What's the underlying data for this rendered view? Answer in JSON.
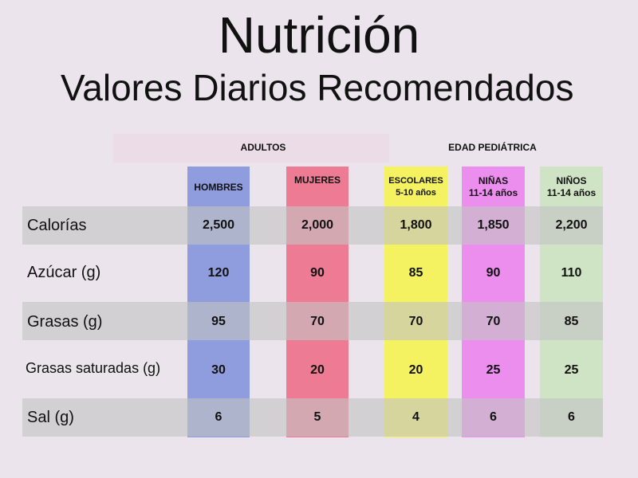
{
  "title": "Nutrición",
  "subtitle": "Valores Diarios Recomendados",
  "groups": {
    "adults": "ADULTOS",
    "pediatric": "EDAD PEDIÁTRICA"
  },
  "columns": [
    {
      "line1": "HOMBRES",
      "line2": "",
      "color": "#7f8fdc"
    },
    {
      "line1": "MUJERES",
      "line2": "",
      "color": "#ec6f8a"
    },
    {
      "line1": "ESCOLARES",
      "line2": "5-10 años",
      "color": "#f4f25a"
    },
    {
      "line1": "NIÑAS",
      "line2": "11-14 años",
      "color": "#ec84ee"
    },
    {
      "line1": "NIÑOS",
      "line2": "11-14 años",
      "color": "#cde3c3"
    }
  ],
  "rows": [
    {
      "label": "Calorías",
      "values": [
        "2,500",
        "2,000",
        "1,800",
        "1,850",
        "2,200"
      ]
    },
    {
      "label": "Azúcar (g)",
      "values": [
        "120",
        "90",
        "85",
        "90",
        "110"
      ]
    },
    {
      "label": "Grasas (g)",
      "values": [
        "95",
        "70",
        "70",
        "70",
        "85"
      ]
    },
    {
      "label": "Grasas saturadas (g)",
      "values": [
        "30",
        "20",
        "20",
        "25",
        "25"
      ]
    },
    {
      "label": "Sal (g)",
      "values": [
        "6",
        "5",
        "4",
        "6",
        "6"
      ]
    }
  ]
}
